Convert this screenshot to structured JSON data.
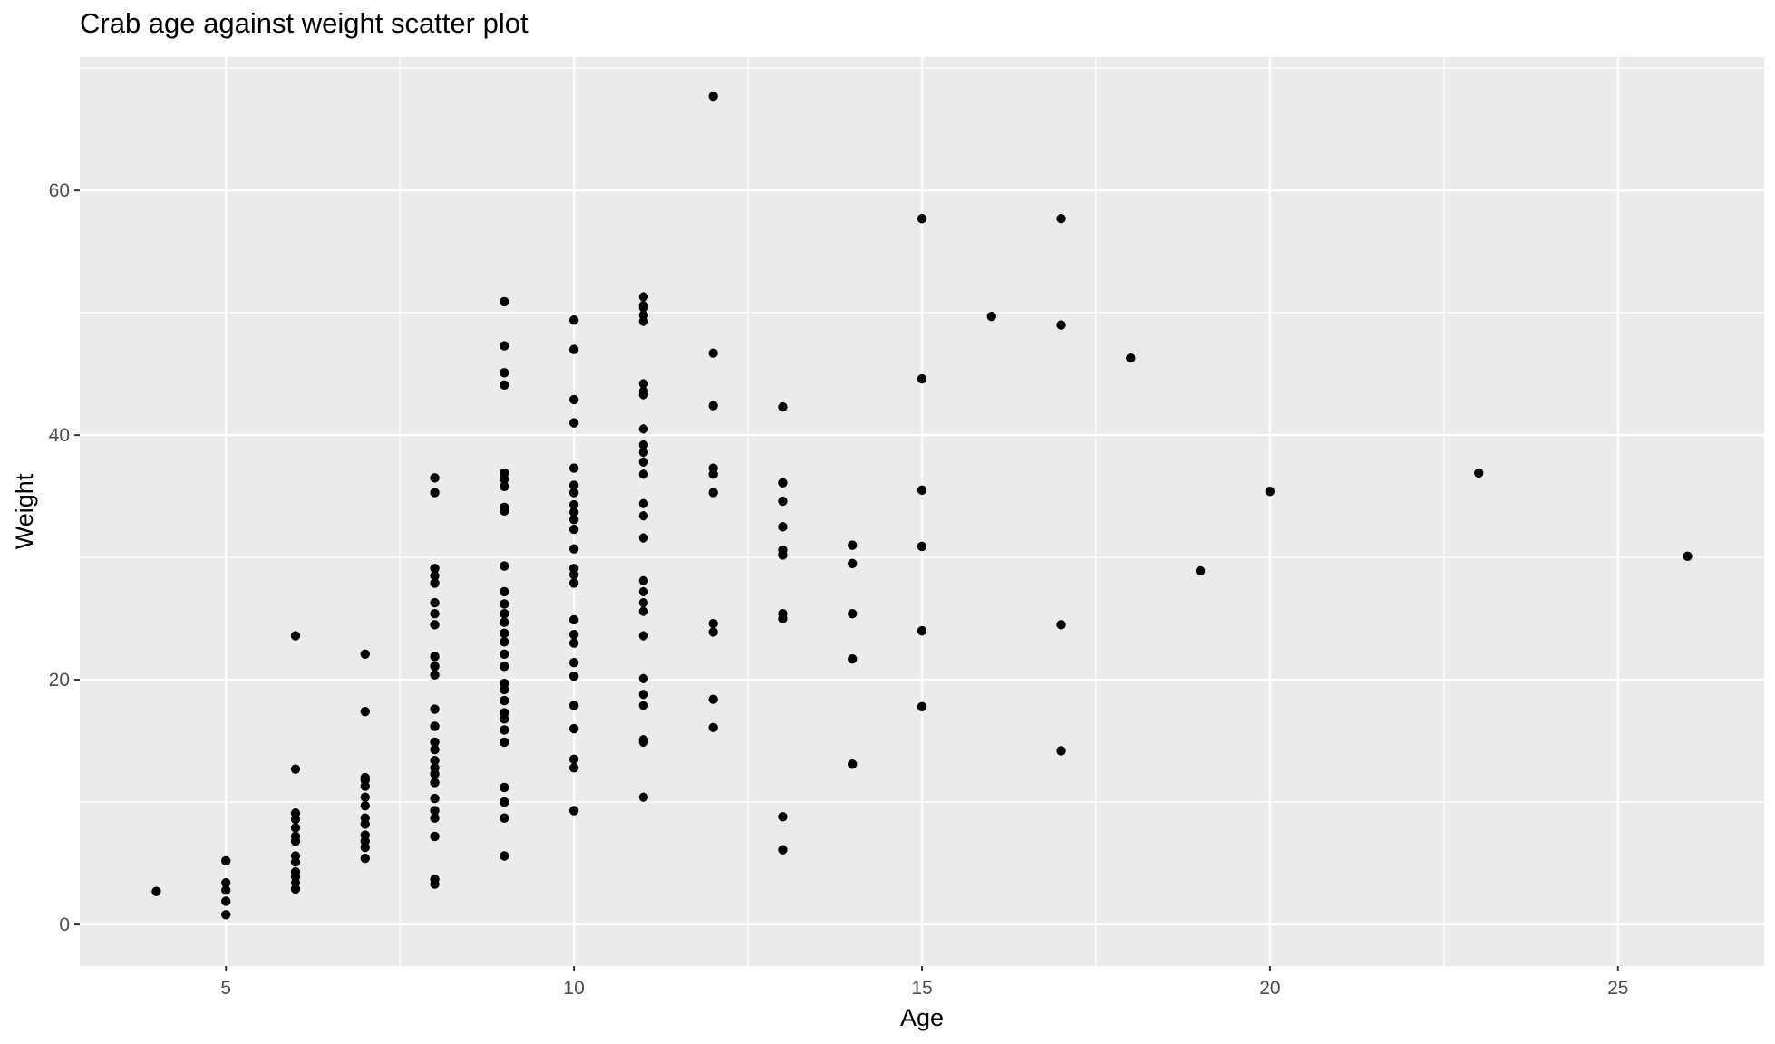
{
  "chart_data": {
    "type": "scatter",
    "title": "Crab age against weight scatter plot",
    "xlabel": "Age",
    "ylabel": "Weight",
    "xlim": [
      2.9,
      27.1
    ],
    "ylim": [
      -3.4,
      70.9
    ],
    "x_ticks": [
      5,
      10,
      15,
      20,
      25
    ],
    "y_ticks": [
      0,
      20,
      40,
      60
    ],
    "grid": true,
    "panel_background": "#ebebeb",
    "grid_color": "#ffffff",
    "point_color": "#000000",
    "points": [
      [
        4,
        2.7
      ],
      [
        5,
        0.8
      ],
      [
        5,
        1.9
      ],
      [
        5,
        2.8
      ],
      [
        5,
        3.4
      ],
      [
        5,
        5.2
      ],
      [
        6,
        2.9
      ],
      [
        6,
        3.4
      ],
      [
        6,
        3.9
      ],
      [
        6,
        4.3
      ],
      [
        6,
        5.1
      ],
      [
        6,
        5.6
      ],
      [
        6,
        6.8
      ],
      [
        6,
        7.2
      ],
      [
        6,
        7.9
      ],
      [
        6,
        8.6
      ],
      [
        6,
        9.1
      ],
      [
        6,
        12.7
      ],
      [
        6,
        23.6
      ],
      [
        7,
        5.4
      ],
      [
        7,
        6.3
      ],
      [
        7,
        6.8
      ],
      [
        7,
        7.3
      ],
      [
        7,
        8.2
      ],
      [
        7,
        8.7
      ],
      [
        7,
        9.7
      ],
      [
        7,
        10.4
      ],
      [
        7,
        11.3
      ],
      [
        7,
        11.8
      ],
      [
        7,
        12.0
      ],
      [
        7,
        17.4
      ],
      [
        7,
        22.1
      ],
      [
        8,
        3.3
      ],
      [
        8,
        3.7
      ],
      [
        8,
        7.2
      ],
      [
        8,
        8.7
      ],
      [
        8,
        9.3
      ],
      [
        8,
        10.3
      ],
      [
        8,
        11.6
      ],
      [
        8,
        12.3
      ],
      [
        8,
        12.8
      ],
      [
        8,
        13.4
      ],
      [
        8,
        14.3
      ],
      [
        8,
        14.9
      ],
      [
        8,
        16.2
      ],
      [
        8,
        17.6
      ],
      [
        8,
        20.4
      ],
      [
        8,
        21.1
      ],
      [
        8,
        21.9
      ],
      [
        8,
        24.5
      ],
      [
        8,
        25.4
      ],
      [
        8,
        26.3
      ],
      [
        8,
        27.9
      ],
      [
        8,
        28.5
      ],
      [
        8,
        29.1
      ],
      [
        8,
        35.3
      ],
      [
        8,
        36.5
      ],
      [
        9,
        5.6
      ],
      [
        9,
        8.7
      ],
      [
        9,
        10.0
      ],
      [
        9,
        11.2
      ],
      [
        9,
        14.9
      ],
      [
        9,
        15.9
      ],
      [
        9,
        16.8
      ],
      [
        9,
        17.3
      ],
      [
        9,
        18.3
      ],
      [
        9,
        19.2
      ],
      [
        9,
        19.7
      ],
      [
        9,
        21.1
      ],
      [
        9,
        22.1
      ],
      [
        9,
        23.1
      ],
      [
        9,
        23.8
      ],
      [
        9,
        24.7
      ],
      [
        9,
        25.4
      ],
      [
        9,
        26.2
      ],
      [
        9,
        27.2
      ],
      [
        9,
        29.3
      ],
      [
        9,
        33.8
      ],
      [
        9,
        34.1
      ],
      [
        9,
        35.8
      ],
      [
        9,
        36.4
      ],
      [
        9,
        36.9
      ],
      [
        9,
        44.1
      ],
      [
        9,
        45.1
      ],
      [
        9,
        47.3
      ],
      [
        9,
        50.9
      ],
      [
        10,
        9.3
      ],
      [
        10,
        12.8
      ],
      [
        10,
        13.5
      ],
      [
        10,
        16.0
      ],
      [
        10,
        17.9
      ],
      [
        10,
        20.3
      ],
      [
        10,
        21.4
      ],
      [
        10,
        23.0
      ],
      [
        10,
        23.7
      ],
      [
        10,
        24.9
      ],
      [
        10,
        27.9
      ],
      [
        10,
        28.6
      ],
      [
        10,
        29.1
      ],
      [
        10,
        30.7
      ],
      [
        10,
        32.3
      ],
      [
        10,
        33.1
      ],
      [
        10,
        33.7
      ],
      [
        10,
        34.3
      ],
      [
        10,
        35.3
      ],
      [
        10,
        35.9
      ],
      [
        10,
        37.3
      ],
      [
        10,
        41.0
      ],
      [
        10,
        42.9
      ],
      [
        10,
        47.0
      ],
      [
        10,
        49.4
      ],
      [
        11,
        10.4
      ],
      [
        11,
        14.9
      ],
      [
        11,
        15.1
      ],
      [
        11,
        17.9
      ],
      [
        11,
        18.8
      ],
      [
        11,
        20.1
      ],
      [
        11,
        23.6
      ],
      [
        11,
        25.6
      ],
      [
        11,
        26.3
      ],
      [
        11,
        27.2
      ],
      [
        11,
        28.1
      ],
      [
        11,
        31.6
      ],
      [
        11,
        33.4
      ],
      [
        11,
        34.4
      ],
      [
        11,
        36.8
      ],
      [
        11,
        37.8
      ],
      [
        11,
        38.6
      ],
      [
        11,
        39.2
      ],
      [
        11,
        40.5
      ],
      [
        11,
        43.3
      ],
      [
        11,
        43.6
      ],
      [
        11,
        44.2
      ],
      [
        11,
        49.3
      ],
      [
        11,
        49.8
      ],
      [
        11,
        50.4
      ],
      [
        11,
        50.6
      ],
      [
        11,
        51.3
      ],
      [
        12,
        16.1
      ],
      [
        12,
        18.4
      ],
      [
        12,
        23.9
      ],
      [
        12,
        24.6
      ],
      [
        12,
        35.3
      ],
      [
        12,
        36.8
      ],
      [
        12,
        37.3
      ],
      [
        12,
        42.4
      ],
      [
        12,
        46.7
      ],
      [
        12,
        67.7
      ],
      [
        13,
        6.1
      ],
      [
        13,
        8.8
      ],
      [
        13,
        25.0
      ],
      [
        13,
        25.4
      ],
      [
        13,
        30.2
      ],
      [
        13,
        30.6
      ],
      [
        13,
        32.5
      ],
      [
        13,
        34.6
      ],
      [
        13,
        36.1
      ],
      [
        13,
        42.3
      ],
      [
        14,
        13.1
      ],
      [
        14,
        21.7
      ],
      [
        14,
        25.4
      ],
      [
        14,
        29.5
      ],
      [
        14,
        31.0
      ],
      [
        15,
        17.8
      ],
      [
        15,
        24.0
      ],
      [
        15,
        30.9
      ],
      [
        15,
        35.5
      ],
      [
        15,
        44.6
      ],
      [
        15,
        57.7
      ],
      [
        16,
        49.7
      ],
      [
        17,
        14.2
      ],
      [
        17,
        24.5
      ],
      [
        17,
        49.0
      ],
      [
        17,
        57.7
      ],
      [
        18,
        46.3
      ],
      [
        19,
        28.9
      ],
      [
        20,
        35.4
      ],
      [
        23,
        36.9
      ],
      [
        26,
        30.1
      ]
    ]
  }
}
